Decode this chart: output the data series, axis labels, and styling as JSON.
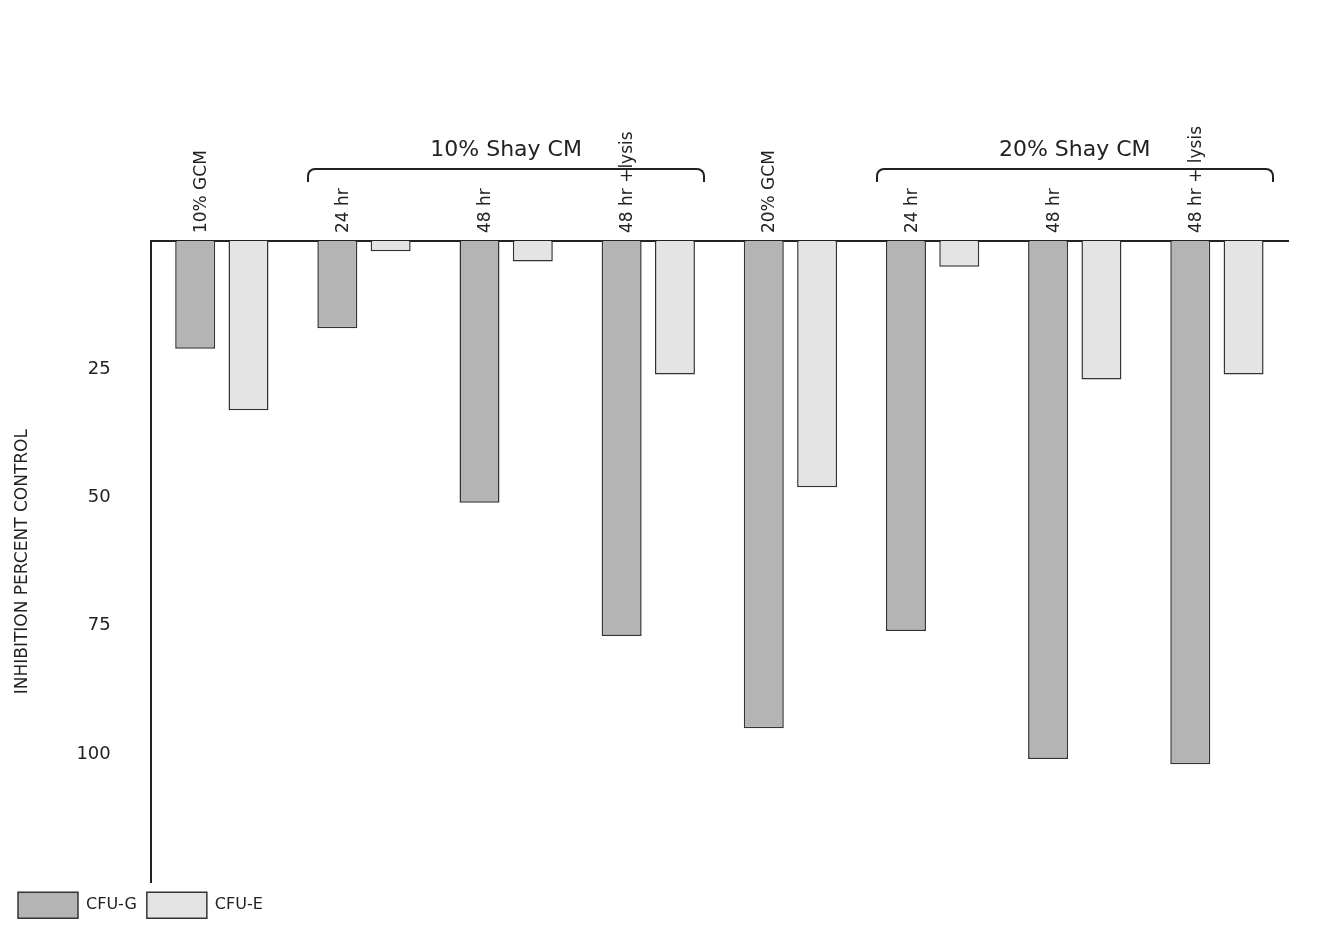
{
  "chart_data": {
    "type": "bar",
    "ylabel": "INHIBITION PERCENT CONTROL",
    "categories": [
      "10% GCM",
      "24 hr",
      "48 hr",
      "48 hr +lysis",
      "20% GCM",
      "24 hr",
      "48 hr",
      "48 hr + lysis"
    ],
    "series": [
      {
        "name": "CFU-G",
        "color": "#b4b4b4",
        "values": [
          21,
          17,
          51,
          77,
          95,
          76,
          101,
          102
        ]
      },
      {
        "name": "CFU-E",
        "color": "#e4e4e4",
        "values": [
          33,
          2,
          4,
          26,
          48,
          5,
          27,
          26
        ]
      }
    ],
    "ylim": [
      125,
      0
    ],
    "yticks": [
      25,
      50,
      75,
      100
    ],
    "grid": false,
    "legend": "bottom left",
    "annotations": [
      "10% Shay CM",
      "20% Shay CM"
    ]
  }
}
